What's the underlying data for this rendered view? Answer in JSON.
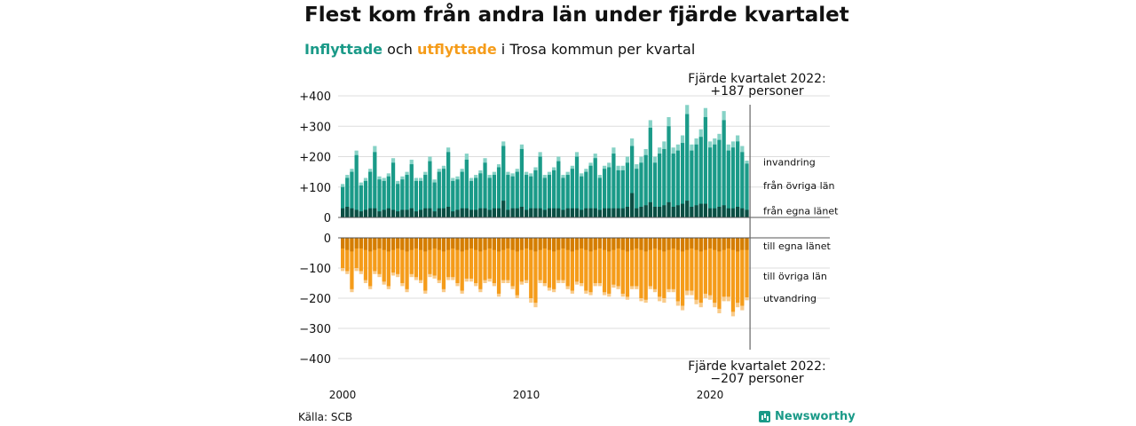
{
  "title": "Flest kom från andra län under fjärde kvartalet",
  "subtitle": {
    "in_word": "Inflyttade",
    "and_word": "och",
    "out_word": "utflyttade",
    "rest": "i Trosa kommun per kvartal"
  },
  "source": "Källa: SCB",
  "brand": "Newsworthy",
  "colors": {
    "in_own": "#0b4e43",
    "in_other": "#1a9a88",
    "in_abroad": "#86d2c6",
    "out_own": "#d47d00",
    "out_other": "#f59c1a",
    "out_abroad": "#f9cb8a",
    "grid": "#dddddd",
    "axis": "#555555"
  },
  "chart_data": {
    "type": "bar",
    "stacked": true,
    "x_start": "2000 Q1",
    "x_ticks": [
      "2000",
      "2010",
      "2020"
    ],
    "y_ticks_top": [
      "+400",
      "+300",
      "+200",
      "+100",
      "0"
    ],
    "y_ticks_bottom": [
      "0",
      "−100",
      "−200",
      "−300",
      "−400"
    ],
    "ylim_top": [
      0,
      400
    ],
    "ylim_bottom": [
      -400,
      0
    ],
    "series_labels_top": [
      "invandring",
      "från övriga län",
      "från egna länet"
    ],
    "series_labels_bottom": [
      "till egna länet",
      "till övriga län",
      "utvandring"
    ],
    "annotation_top": [
      "Fjärde kvartalet 2022:",
      "+187 personer"
    ],
    "annotation_bottom": [
      "Fjärde kvartalet 2022:",
      "−207 personer"
    ],
    "inflow_total": [
      110,
      140,
      160,
      220,
      115,
      130,
      160,
      235,
      135,
      130,
      145,
      195,
      120,
      135,
      150,
      190,
      130,
      130,
      150,
      200,
      125,
      160,
      170,
      230,
      130,
      135,
      160,
      210,
      130,
      140,
      155,
      195,
      140,
      150,
      175,
      250,
      150,
      145,
      160,
      240,
      150,
      145,
      165,
      215,
      140,
      150,
      165,
      200,
      140,
      150,
      170,
      215,
      145,
      160,
      180,
      210,
      140,
      170,
      180,
      230,
      170,
      170,
      200,
      260,
      175,
      200,
      225,
      320,
      200,
      230,
      250,
      330,
      230,
      240,
      270,
      370,
      240,
      260,
      290,
      360,
      250,
      260,
      275,
      350,
      240,
      250,
      270,
      235,
      187
    ],
    "inflow_abroad": [
      10,
      10,
      10,
      15,
      10,
      10,
      10,
      20,
      10,
      10,
      10,
      15,
      10,
      10,
      10,
      15,
      10,
      10,
      10,
      15,
      10,
      10,
      10,
      15,
      10,
      10,
      10,
      20,
      10,
      10,
      10,
      15,
      10,
      10,
      10,
      15,
      10,
      10,
      10,
      15,
      10,
      10,
      10,
      15,
      10,
      10,
      10,
      15,
      10,
      10,
      10,
      15,
      10,
      10,
      10,
      15,
      10,
      10,
      15,
      20,
      15,
      15,
      20,
      25,
      15,
      20,
      20,
      25,
      20,
      20,
      25,
      30,
      20,
      20,
      25,
      30,
      20,
      20,
      25,
      30,
      20,
      20,
      20,
      30,
      20,
      20,
      20,
      20,
      10
    ],
    "inflow_own": [
      30,
      35,
      30,
      25,
      20,
      25,
      30,
      30,
      20,
      25,
      30,
      25,
      20,
      25,
      25,
      30,
      20,
      25,
      30,
      30,
      20,
      30,
      30,
      35,
      20,
      25,
      30,
      30,
      25,
      25,
      30,
      30,
      25,
      30,
      30,
      55,
      25,
      30,
      30,
      35,
      25,
      30,
      30,
      30,
      25,
      30,
      30,
      30,
      25,
      30,
      30,
      30,
      25,
      30,
      30,
      30,
      25,
      30,
      30,
      30,
      30,
      30,
      35,
      80,
      30,
      35,
      40,
      50,
      35,
      35,
      40,
      50,
      35,
      40,
      45,
      55,
      35,
      40,
      45,
      45,
      30,
      30,
      35,
      40,
      30,
      30,
      35,
      30,
      25
    ],
    "outflow_total": [
      -110,
      -120,
      -180,
      -110,
      -120,
      -150,
      -170,
      -120,
      -130,
      -155,
      -170,
      -125,
      -130,
      -160,
      -180,
      -130,
      -140,
      -150,
      -185,
      -130,
      -135,
      -150,
      -180,
      -140,
      -140,
      -160,
      -185,
      -145,
      -145,
      -160,
      -180,
      -150,
      -145,
      -160,
      -195,
      -150,
      -150,
      -170,
      -200,
      -155,
      -150,
      -215,
      -230,
      -150,
      -160,
      -175,
      -180,
      -150,
      -150,
      -170,
      -185,
      -155,
      -160,
      -185,
      -190,
      -160,
      -160,
      -190,
      -195,
      -165,
      -170,
      -195,
      -205,
      -170,
      -170,
      -210,
      -215,
      -170,
      -180,
      -210,
      -215,
      -180,
      -180,
      -225,
      -240,
      -190,
      -190,
      -220,
      -230,
      -200,
      -205,
      -230,
      -250,
      -210,
      -210,
      -260,
      -230,
      -240,
      -207
    ],
    "outflow_abroad": [
      -10,
      -10,
      -10,
      -10,
      -10,
      -10,
      -10,
      -10,
      -10,
      -10,
      -10,
      -10,
      -10,
      -10,
      -10,
      -10,
      -10,
      -10,
      -10,
      -10,
      -10,
      -10,
      -10,
      -10,
      -10,
      -10,
      -10,
      -10,
      -10,
      -10,
      -10,
      -10,
      -10,
      -10,
      -10,
      -10,
      -10,
      -10,
      -10,
      -10,
      -10,
      -15,
      -15,
      -10,
      -10,
      -10,
      -10,
      -10,
      -10,
      -10,
      -10,
      -10,
      -10,
      -10,
      -10,
      -10,
      -10,
      -10,
      -10,
      -10,
      -10,
      -10,
      -10,
      -10,
      -10,
      -10,
      -10,
      -10,
      -10,
      -15,
      -15,
      -10,
      -10,
      -15,
      -15,
      -15,
      -15,
      -15,
      -15,
      -15,
      -15,
      -15,
      -15,
      -15,
      -15,
      -15,
      -15,
      -15,
      -10
    ],
    "outflow_own": [
      -35,
      -40,
      -45,
      -35,
      -35,
      -40,
      -45,
      -40,
      -35,
      -40,
      -45,
      -40,
      -35,
      -40,
      -45,
      -40,
      -35,
      -40,
      -45,
      -40,
      -35,
      -40,
      -45,
      -40,
      -35,
      -40,
      -45,
      -40,
      -35,
      -40,
      -45,
      -40,
      -35,
      -40,
      -45,
      -40,
      -35,
      -40,
      -45,
      -40,
      -35,
      -40,
      -45,
      -40,
      -35,
      -40,
      -45,
      -40,
      -35,
      -40,
      -45,
      -40,
      -35,
      -40,
      -45,
      -40,
      -35,
      -40,
      -45,
      -40,
      -35,
      -40,
      -45,
      -40,
      -35,
      -40,
      -45,
      -40,
      -35,
      -40,
      -45,
      -40,
      -35,
      -40,
      -45,
      -40,
      -35,
      -40,
      -45,
      -40,
      -35,
      -40,
      -45,
      -40,
      -35,
      -40,
      -45,
      -40,
      -40
    ]
  }
}
